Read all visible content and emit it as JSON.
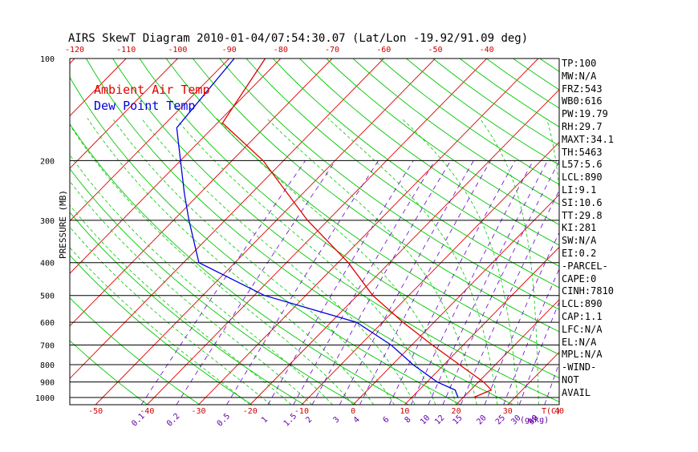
{
  "chart_data": {
    "type": "line",
    "title": "AIRS SkewT Diagram 2010-01-04/07:54:30.07 (Lat/Lon -19.92/91.09 deg)",
    "ylabel": "PRESSURE (MB)",
    "x_unit_label": "T(C)",
    "mixing_ratio_unit_label": "(g/kg)",
    "y_scale": "log",
    "ylim": [
      1050,
      100
    ],
    "xlim_bottom": [
      -55,
      40
    ],
    "grid": true,
    "legend_position": "top-left",
    "pressure_ticks": [
      100,
      200,
      300,
      400,
      500,
      600,
      700,
      800,
      900,
      1000
    ],
    "top_temp_ticks": [
      -120,
      -110,
      -100,
      -90,
      -80,
      -70,
      -60,
      -50,
      -40
    ],
    "bottom_temp_ticks": [
      -50,
      -40,
      -30,
      -20,
      -10,
      0,
      10,
      20,
      30,
      40
    ],
    "mixing_ratio_ticks": [
      "0.1",
      "0.2",
      "0.5",
      "1",
      "1.5",
      "2",
      "3",
      "4",
      "6",
      "8",
      "10",
      "12",
      "15",
      "20",
      "25",
      "30",
      "40",
      "50"
    ],
    "series": [
      {
        "name": "Ambient Air Temp",
        "color": "#e00000",
        "points": [
          [
            100,
            -83
          ],
          [
            155,
            -79
          ],
          [
            200,
            -64
          ],
          [
            250,
            -53
          ],
          [
            300,
            -44
          ],
          [
            400,
            -28
          ],
          [
            500,
            -17
          ],
          [
            600,
            -6
          ],
          [
            700,
            4
          ],
          [
            800,
            13
          ],
          [
            900,
            21
          ],
          [
            950,
            24
          ],
          [
            1000,
            22
          ]
        ]
      },
      {
        "name": "Dew Point Temp",
        "color": "#0000e0",
        "points": [
          [
            100,
            -89
          ],
          [
            160,
            -87
          ],
          [
            200,
            -80
          ],
          [
            250,
            -73
          ],
          [
            300,
            -67
          ],
          [
            400,
            -57
          ],
          [
            500,
            -38
          ],
          [
            600,
            -15
          ],
          [
            700,
            -4
          ],
          [
            800,
            4
          ],
          [
            900,
            12
          ],
          [
            950,
            17
          ],
          [
            1000,
            19
          ]
        ]
      }
    ]
  },
  "stats": [
    "TP:100",
    "MW:N/A",
    "FRZ:543",
    "WB0:616",
    "PW:19.79",
    "RH:29.7",
    "MAXT:34.1",
    "TH:5463",
    "L57:5.6",
    "LCL:890",
    "LI:9.1",
    "SI:10.6",
    "TT:29.8",
    "KI:281",
    "SW:N/A",
    "EI:0.2",
    "-PARCEL-",
    "CAPE:0",
    "CINH:7810",
    "LCL:890",
    "CAP:1.1",
    "LFC:N/A",
    "EL:N/A",
    "MPL:N/A",
    "-WIND-",
    "NOT",
    "AVAIL"
  ],
  "colors": {
    "isotherm": "#e00000",
    "dry_adiabat": "#00c800",
    "moist_adiabat": "#00c800",
    "mixing_ratio": "#6600cc",
    "axis_text_red": "#cc0000",
    "axis_text_purple": "#6600aa"
  }
}
